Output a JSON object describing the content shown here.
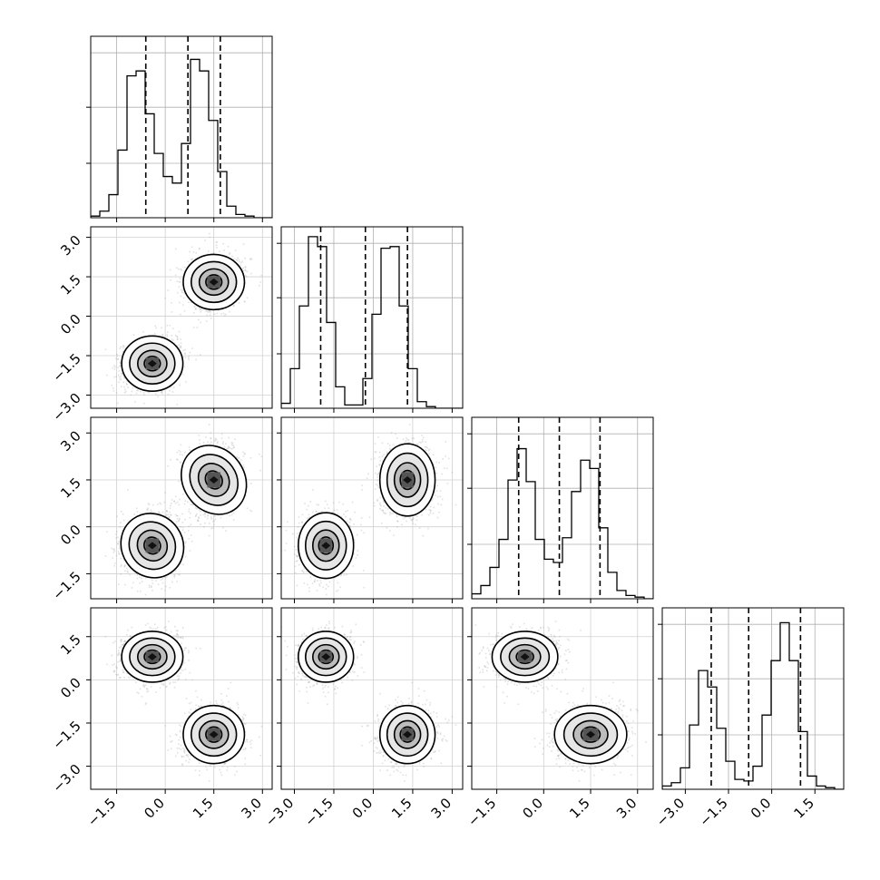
{
  "chart_data": {
    "type": "corner",
    "parameters": 4,
    "grid": true,
    "bins": 20,
    "quantile_lines": "dashed",
    "parameter_ranges": [
      [
        -2.3,
        3.3
      ],
      [
        -3.5,
        3.4
      ],
      [
        -2.3,
        3.5
      ],
      [
        -3.8,
        2.5
      ]
    ],
    "tick_labels": {
      "x": [
        [
          "-1.5",
          "0.0",
          "1.5",
          "3.0"
        ],
        [
          "-3.0",
          "-1.5",
          "0.0",
          "1.5",
          "3.0"
        ],
        [
          "-1.5",
          "0.0",
          "1.5",
          "3.0"
        ],
        [
          "-3.0",
          "-1.5",
          "0.0",
          "1.5"
        ]
      ],
      "y": [
        [],
        [
          "-3.0",
          "-1.5",
          "0.0",
          "1.5",
          "3.0"
        ],
        [
          "-1.5",
          "0.0",
          "1.5",
          "3.0"
        ],
        [
          "-3.0",
          "-1.5",
          "0.0",
          "1.5"
        ]
      ]
    },
    "modes": [
      {
        "weight": 0.5,
        "mean": [
          -0.4,
          -1.8,
          -0.6,
          0.8
        ],
        "std": [
          0.45,
          0.5,
          0.5,
          0.42
        ]
      },
      {
        "weight": 0.5,
        "mean": [
          1.5,
          1.3,
          1.5,
          -1.9
        ],
        "std": [
          0.45,
          0.5,
          0.55,
          0.48
        ]
      }
    ],
    "quantiles": [
      [
        -0.6,
        0.7,
        1.7
      ],
      [
        -2.0,
        -0.3,
        1.3
      ],
      [
        -0.8,
        0.5,
        1.8
      ],
      [
        -2.1,
        -0.8,
        1.0
      ]
    ],
    "histograms": [
      [
        0.01,
        0.04,
        0.14,
        0.41,
        0.86,
        0.89,
        0.63,
        0.39,
        0.25,
        0.21,
        0.45,
        0.96,
        0.89,
        0.59,
        0.28,
        0.07,
        0.02,
        0.01,
        0.0,
        0.0
      ],
      [
        0.03,
        0.24,
        0.62,
        1.04,
        0.98,
        0.52,
        0.13,
        0.02,
        0.02,
        0.18,
        0.57,
        0.97,
        0.98,
        0.62,
        0.24,
        0.04,
        0.01,
        0.0,
        0.0,
        0.0
      ],
      [
        0.03,
        0.08,
        0.19,
        0.36,
        0.72,
        0.91,
        0.71,
        0.36,
        0.24,
        0.22,
        0.37,
        0.65,
        0.84,
        0.79,
        0.43,
        0.16,
        0.05,
        0.02,
        0.01,
        0.0
      ],
      [
        0.02,
        0.04,
        0.13,
        0.39,
        0.72,
        0.62,
        0.37,
        0.17,
        0.06,
        0.05,
        0.14,
        0.45,
        0.78,
        1.01,
        0.78,
        0.35,
        0.08,
        0.02,
        0.01,
        0.0
      ]
    ],
    "density_grey": "#aaaaaa",
    "line_color": "#000000"
  }
}
